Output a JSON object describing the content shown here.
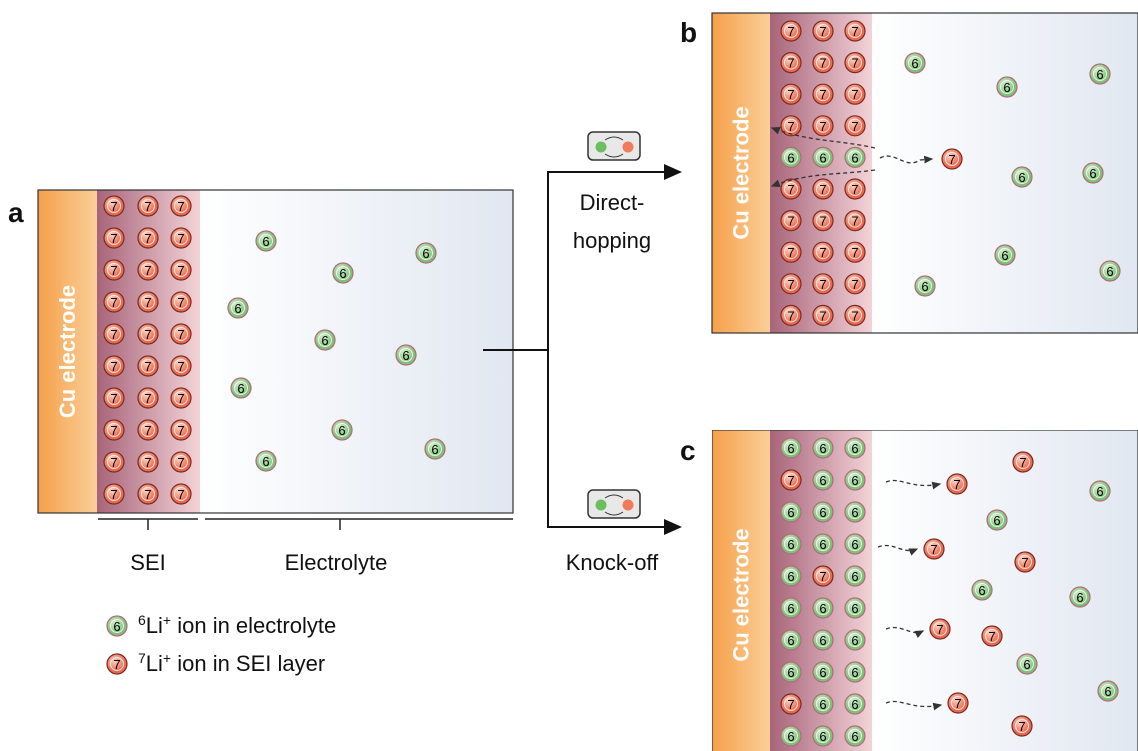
{
  "panels": {
    "a": {
      "label": "a",
      "electrode": "Cu electrode",
      "sei": "SEI",
      "electrolyte": "Electrolyte"
    },
    "b": {
      "label": "b",
      "electrode": "Cu electrode"
    },
    "c": {
      "label": "c",
      "electrode": "Cu electrode"
    }
  },
  "paths": {
    "direct": [
      "Direct-",
      "hopping"
    ],
    "knock": "Knock-off"
  },
  "ions": {
    "li6": "6",
    "li7": "7"
  },
  "legend": [
    {
      "mass": "6",
      "element": "Li",
      "charge": "+",
      "text": " ion in electrolyte"
    },
    {
      "mass": "7",
      "element": "Li",
      "charge": "+",
      "text": " ion in SEI layer"
    }
  ]
}
